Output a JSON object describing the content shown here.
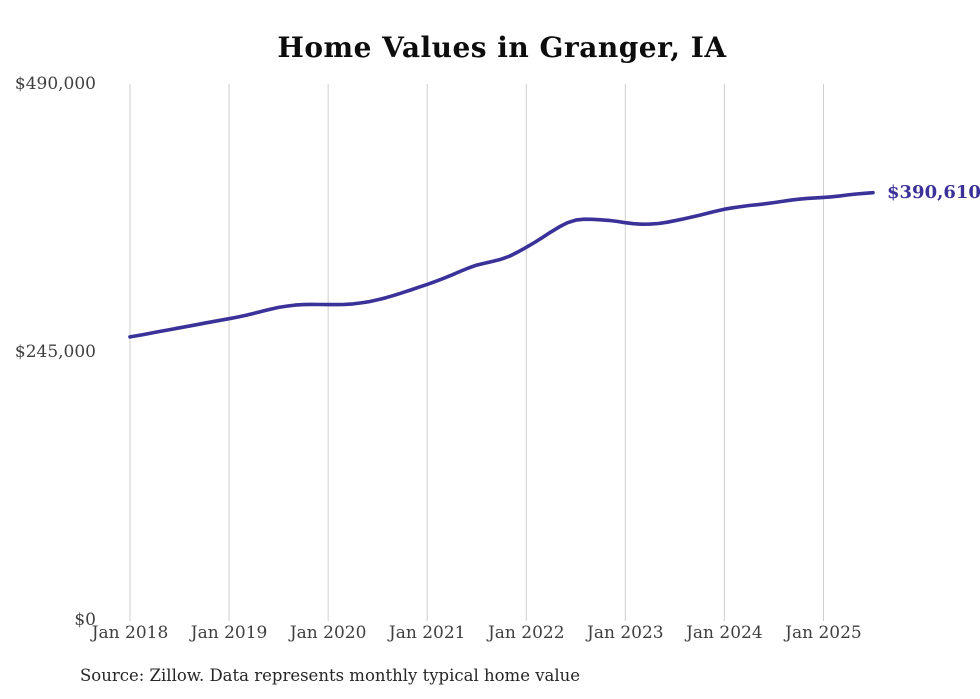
{
  "colors": {
    "background": "#ffffff",
    "line": "#3a3199",
    "grid": "#cfcfcf",
    "title_text": "#0d0d0d",
    "axis_text": "#3f3f3f",
    "source_text": "#262626",
    "value_label_text": "#3a3199"
  },
  "chart_data": {
    "type": "line",
    "title": "Home Values in Granger, IA",
    "source_note": "Source: Zillow. Data represents monthly typical home value",
    "xlabel": "",
    "ylabel": "",
    "frequency": "monthly",
    "x_start": "Jan 2018",
    "x_end": "Jul 2025",
    "ylim": [
      0,
      490000
    ],
    "grid": "vertical-only",
    "legend": "none",
    "y_ticks": [
      {
        "value": 0,
        "label": "$0"
      },
      {
        "value": 245000,
        "label": "$245,000"
      },
      {
        "value": 490000,
        "label": "$490,000"
      }
    ],
    "x_ticks": [
      {
        "label": "Jan 2018",
        "month_index": 0
      },
      {
        "label": "Jan 2019",
        "month_index": 12
      },
      {
        "label": "Jan 2020",
        "month_index": 24
      },
      {
        "label": "Jan 2021",
        "month_index": 36
      },
      {
        "label": "Jan 2022",
        "month_index": 48
      },
      {
        "label": "Jan 2023",
        "month_index": 60
      },
      {
        "label": "Jan 2024",
        "month_index": 72
      },
      {
        "label": "Jan 2025",
        "month_index": 84
      }
    ],
    "series": [
      {
        "name": "Typical home value",
        "values": [
          258800,
          260100,
          261500,
          262900,
          264300,
          265700,
          267100,
          268500,
          269900,
          271300,
          272700,
          274100,
          275400,
          276900,
          278500,
          280300,
          282200,
          284100,
          285800,
          287000,
          287900,
          288300,
          288500,
          288400,
          288300,
          288300,
          288500,
          289000,
          289900,
          291100,
          292700,
          294600,
          296800,
          299200,
          301700,
          304200,
          306800,
          309500,
          312400,
          315500,
          318700,
          321800,
          324400,
          326300,
          328000,
          329900,
          332700,
          336500,
          340700,
          345100,
          349900,
          354800,
          359400,
          363200,
          365600,
          366400,
          366300,
          365900,
          365300,
          364400,
          363200,
          362300,
          361800,
          361900,
          362500,
          363600,
          365000,
          366600,
          368300,
          370100,
          372000,
          373800,
          375500,
          376800,
          377900,
          378900,
          379700,
          380600,
          381600,
          382700,
          383800,
          384700,
          385400,
          385900,
          386300,
          386900,
          387700,
          388600,
          389400,
          390100,
          390610
        ]
      }
    ],
    "current_value": 390610,
    "current_value_label": "$390,610"
  }
}
